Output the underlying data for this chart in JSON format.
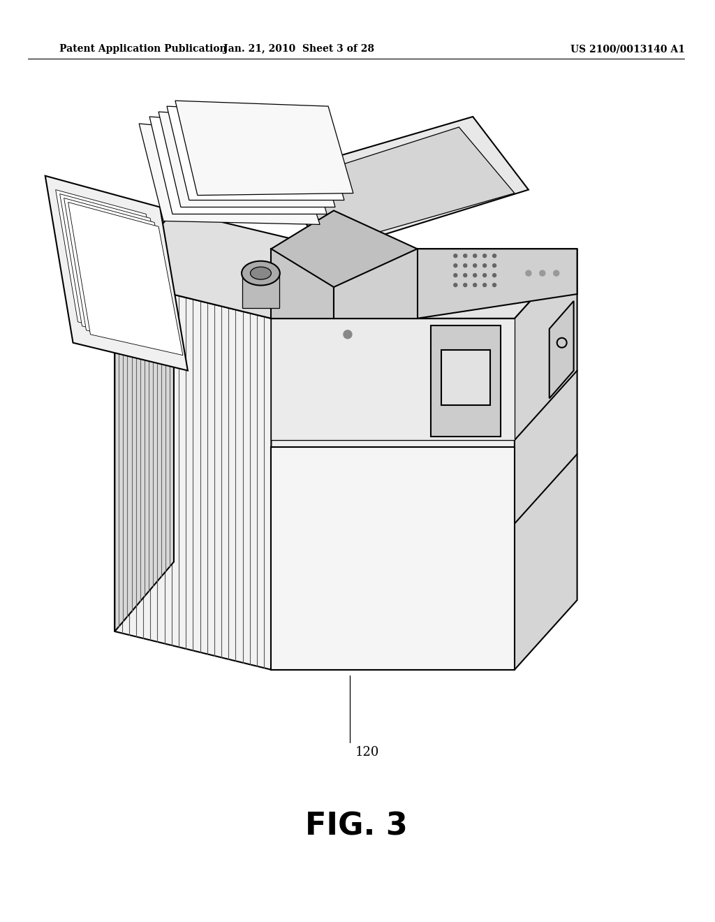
{
  "header_left": "Patent Application Publication",
  "header_mid": "Jan. 21, 2010  Sheet 3 of 28",
  "header_right": "US 2100/0013140 A1",
  "label": "120",
  "fig_caption": "FIG. 3",
  "bg_color": "#ffffff",
  "line_color": "#000000",
  "header_fontsize": 10,
  "caption_fontsize": 32,
  "label_fontsize": 13
}
